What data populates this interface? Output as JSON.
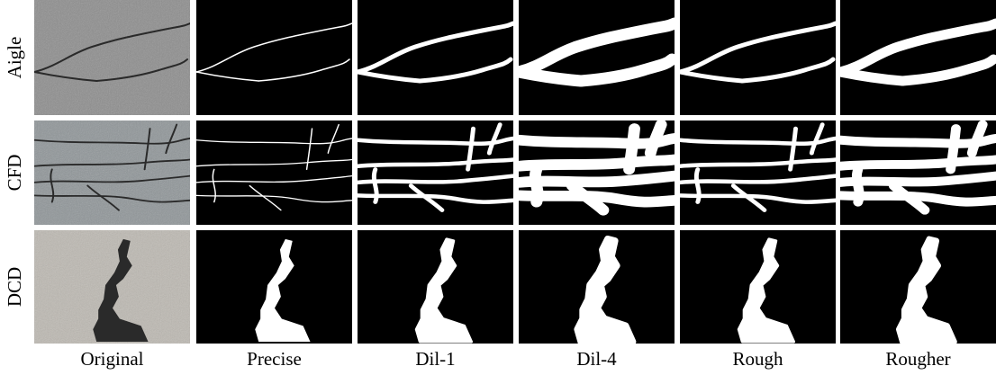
{
  "row_labels": [
    "Aigle",
    "CFD",
    "DCD"
  ],
  "column_labels": [
    "Original",
    "Precise",
    "Dil-1",
    "Dil-4",
    "Rough",
    "Rougher"
  ]
}
